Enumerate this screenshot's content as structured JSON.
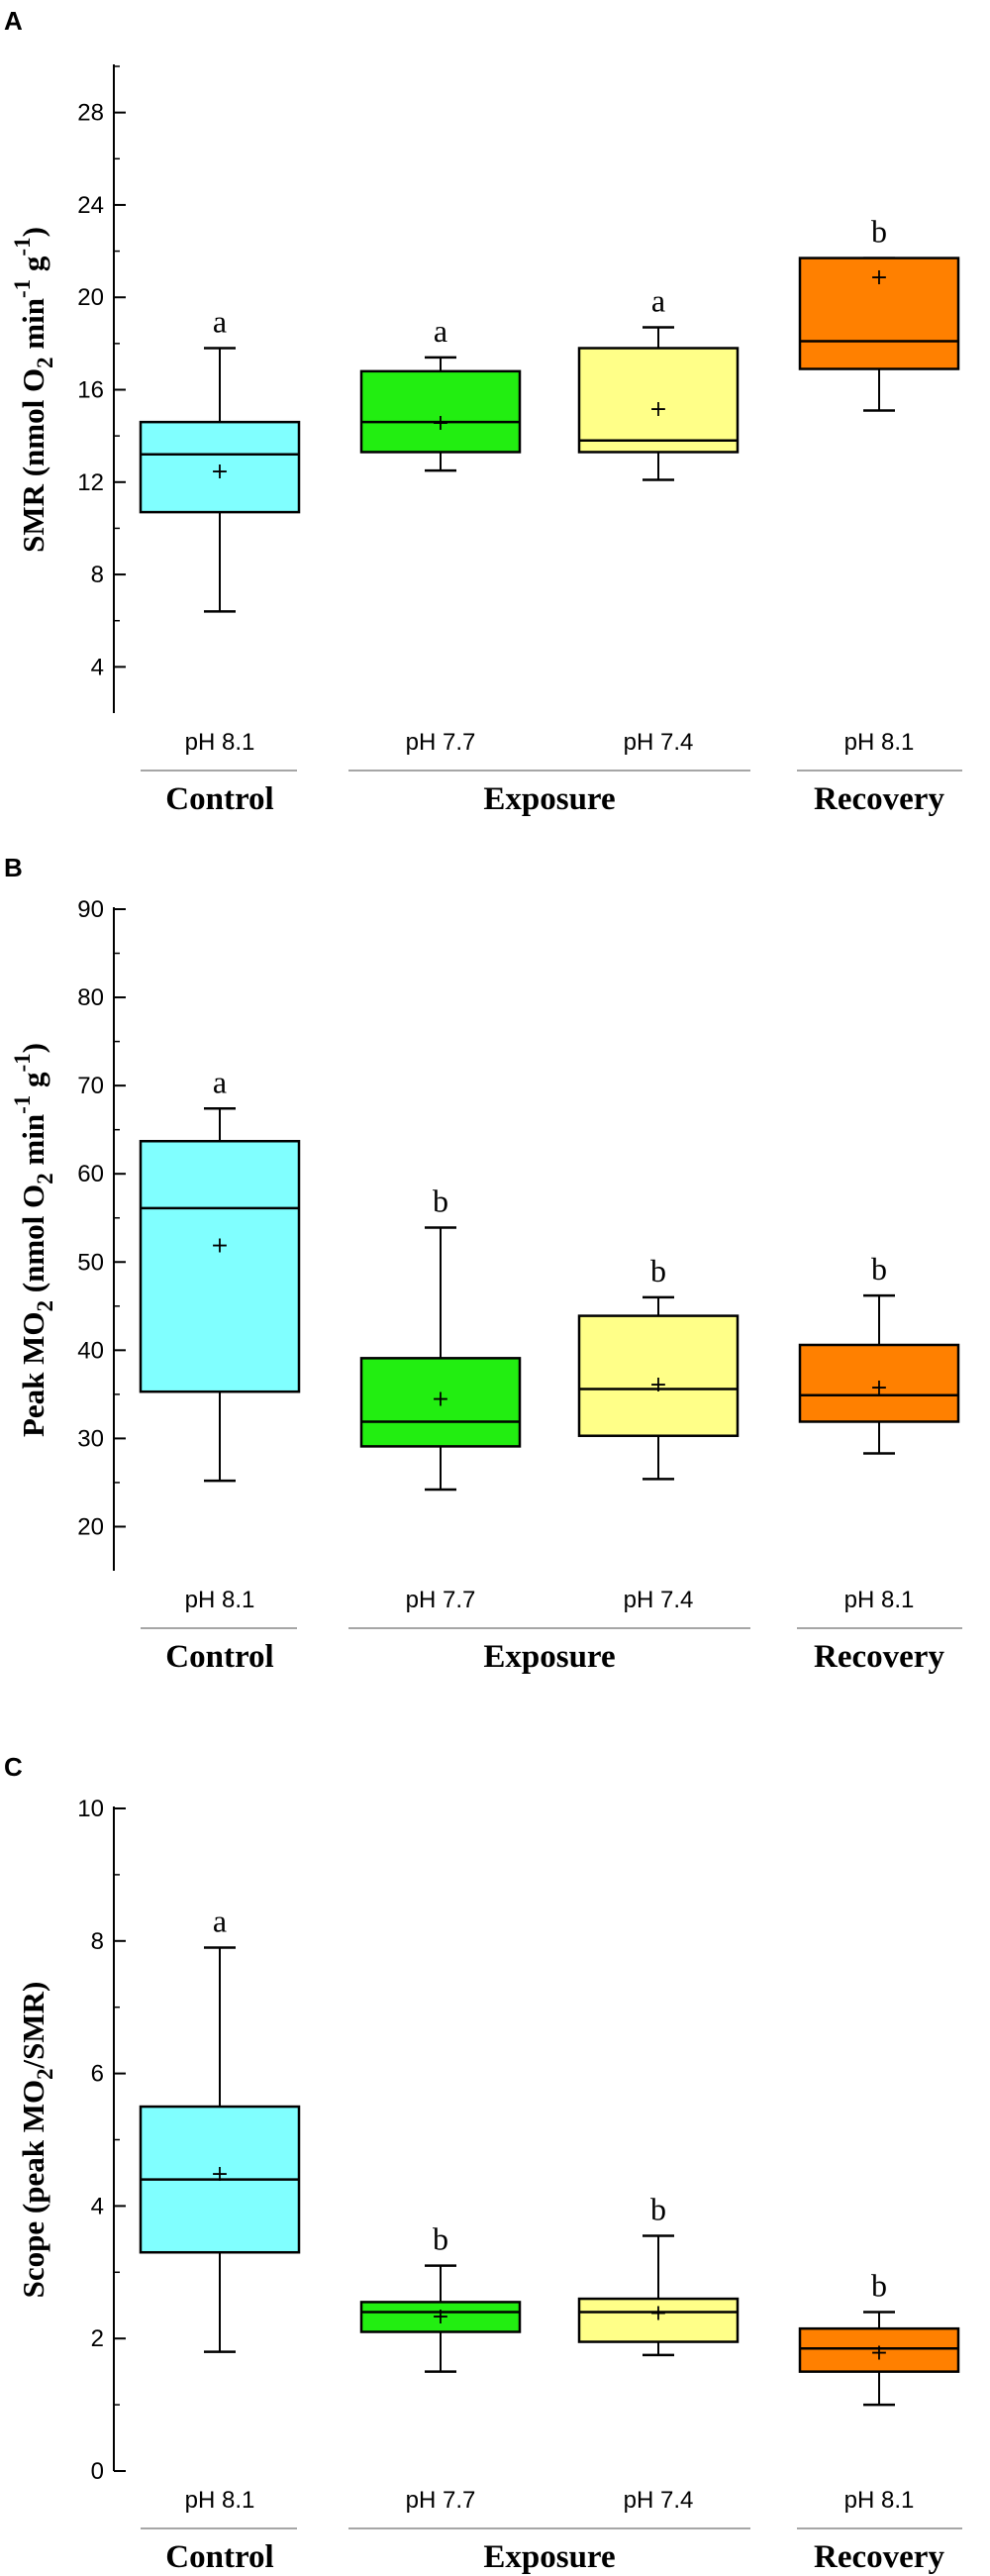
{
  "chart_data": [
    {
      "type": "box",
      "panel": "A",
      "ylabel_parts": [
        "SMR (nmol O",
        "2",
        " min",
        "-1",
        " g",
        "-1",
        ")"
      ],
      "ylim": [
        2,
        30
      ],
      "yticks": [
        4,
        8,
        12,
        16,
        20,
        24,
        28
      ],
      "categories": [
        "pH 8.1",
        "pH 7.7",
        "pH 7.4",
        "pH 8.1"
      ],
      "colors": [
        "#80ffff",
        "#22ee11",
        "#ffff88",
        "#ff8000"
      ],
      "series": [
        {
          "whisker_low": 6.4,
          "q1": 10.7,
          "median": 13.2,
          "q3": 14.6,
          "whisker_high": 17.8,
          "mean": 12.5,
          "letter": "a"
        },
        {
          "whisker_low": 12.5,
          "q1": 13.3,
          "median": 14.6,
          "q3": 16.8,
          "whisker_high": 17.4,
          "mean": 14.6,
          "letter": "a"
        },
        {
          "whisker_low": 12.1,
          "q1": 13.3,
          "median": 13.8,
          "q3": 17.8,
          "whisker_high": 18.7,
          "mean": 15.2,
          "letter": "a"
        },
        {
          "whisker_low": 15.1,
          "q1": 16.9,
          "median": 18.1,
          "q3": 21.7,
          "whisker_high": 21.7,
          "mean": 20.9,
          "letter": "b"
        }
      ],
      "groups": [
        {
          "label": "Control",
          "span": [
            0,
            0
          ]
        },
        {
          "label": "Exposure",
          "span": [
            1,
            2
          ]
        },
        {
          "label": "Recovery",
          "span": [
            3,
            3
          ]
        }
      ]
    },
    {
      "type": "box",
      "panel": "B",
      "ylabel_parts": [
        "Peak MO",
        "2",
        " (nmol O",
        "2",
        " min",
        "-1",
        " g",
        "-1",
        ")"
      ],
      "ylim": [
        15,
        90
      ],
      "yticks": [
        20,
        30,
        40,
        50,
        60,
        70,
        80,
        90
      ],
      "categories": [
        "pH 8.1",
        "pH 7.7",
        "pH 7.4",
        "pH 8.1"
      ],
      "colors": [
        "#80ffff",
        "#22ee11",
        "#ffff88",
        "#ff8000"
      ],
      "series": [
        {
          "whisker_low": 25.2,
          "q1": 35.3,
          "median": 56.1,
          "q3": 63.7,
          "whisker_high": 67.4,
          "mean": 52.0,
          "letter": "a"
        },
        {
          "whisker_low": 24.2,
          "q1": 29.1,
          "median": 31.9,
          "q3": 39.1,
          "whisker_high": 53.9,
          "mean": 34.6,
          "letter": "b"
        },
        {
          "whisker_low": 25.4,
          "q1": 30.3,
          "median": 35.6,
          "q3": 43.9,
          "whisker_high": 46.0,
          "mean": 36.2,
          "letter": "b"
        },
        {
          "whisker_low": 28.3,
          "q1": 31.9,
          "median": 34.9,
          "q3": 40.6,
          "whisker_high": 46.2,
          "mean": 35.9,
          "letter": "b"
        }
      ],
      "groups": [
        {
          "label": "Control",
          "span": [
            0,
            0
          ]
        },
        {
          "label": "Exposure",
          "span": [
            1,
            2
          ]
        },
        {
          "label": "Recovery",
          "span": [
            3,
            3
          ]
        }
      ]
    },
    {
      "type": "box",
      "panel": "C",
      "ylabel_parts": [
        "Scope (peak MO",
        "2",
        "/SMR)"
      ],
      "ylim": [
        0,
        10
      ],
      "yticks": [
        0,
        2,
        4,
        6,
        8,
        10
      ],
      "categories": [
        "pH 8.1",
        "pH 7.7",
        "pH 7.4",
        "pH 8.1"
      ],
      "colors": [
        "#80ffff",
        "#22ee11",
        "#ffff88",
        "#ff8000"
      ],
      "series": [
        {
          "whisker_low": 1.8,
          "q1": 3.3,
          "median": 4.4,
          "q3": 5.5,
          "whisker_high": 7.9,
          "mean": 4.5,
          "letter": "a"
        },
        {
          "whisker_low": 1.5,
          "q1": 2.1,
          "median": 2.4,
          "q3": 2.55,
          "whisker_high": 3.1,
          "mean": 2.35,
          "letter": "b"
        },
        {
          "whisker_low": 1.75,
          "q1": 1.95,
          "median": 2.4,
          "q3": 2.6,
          "whisker_high": 3.55,
          "mean": 2.4,
          "letter": "b"
        },
        {
          "whisker_low": 1.0,
          "q1": 1.5,
          "median": 1.85,
          "q3": 2.15,
          "whisker_high": 2.4,
          "mean": 1.8,
          "letter": "b"
        }
      ],
      "groups": [
        {
          "label": "Control",
          "span": [
            0,
            0
          ]
        },
        {
          "label": "Exposure",
          "span": [
            1,
            2
          ]
        },
        {
          "label": "Recovery",
          "span": [
            3,
            3
          ]
        }
      ]
    }
  ]
}
